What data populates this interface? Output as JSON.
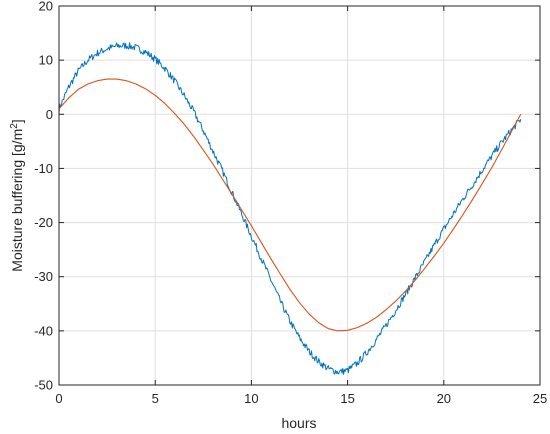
{
  "chart_data": {
    "type": "line",
    "title": "",
    "xlabel": "hours",
    "ylabel_main": "Moisture buffering [g/m",
    "ylabel_sup": "2",
    "ylabel_end": "]",
    "xlim": [
      0,
      25
    ],
    "ylim": [
      -50,
      20
    ],
    "xticks": [
      0,
      5,
      10,
      15,
      20,
      25
    ],
    "yticks": [
      -50,
      -40,
      -30,
      -20,
      -10,
      0,
      10,
      20
    ],
    "xtick_labels": [
      "0",
      "5",
      "10",
      "15",
      "20",
      "25"
    ],
    "ytick_labels": [
      "-50",
      "-40",
      "-30",
      "-20",
      "-10",
      "0",
      "10",
      "20"
    ],
    "grid": true,
    "legend": "none",
    "series": [
      {
        "color": "#0072bd",
        "noisy": true,
        "x": [
          0,
          0.5,
          1,
          1.5,
          2,
          2.5,
          3,
          3.5,
          4,
          4.5,
          5,
          5.5,
          6,
          6.5,
          7,
          7.5,
          8,
          8.5,
          9,
          9.5,
          10,
          10.5,
          11,
          11.5,
          12,
          12.5,
          13,
          13.5,
          14,
          14.5,
          15,
          15.5,
          16,
          16.5,
          17,
          17.5,
          18,
          18.5,
          19,
          19.5,
          20,
          20.5,
          21,
          21.5,
          22,
          22.5,
          23,
          23.5,
          24
        ],
        "y": [
          1,
          5,
          8,
          10,
          11.3,
          12.1,
          12.6,
          12.7,
          12.3,
          11.5,
          10.2,
          8.5,
          6.2,
          3.5,
          0.5,
          -3,
          -6.8,
          -10.5,
          -14.5,
          -18.5,
          -22.5,
          -26.5,
          -30.5,
          -34.5,
          -38.2,
          -41.3,
          -43.8,
          -45.7,
          -47,
          -47.6,
          -47.3,
          -46,
          -44,
          -41.6,
          -39,
          -36.2,
          -33.3,
          -30.3,
          -27.3,
          -24.2,
          -21.2,
          -18.4,
          -15.6,
          -13,
          -10.3,
          -7.7,
          -5.2,
          -3,
          -0.9
        ]
      },
      {
        "color": "#d95319",
        "noisy": false,
        "x": [
          0,
          0.5,
          1,
          1.5,
          2,
          2.5,
          3,
          3.5,
          4,
          4.5,
          5,
          5.5,
          6,
          6.5,
          7,
          7.5,
          8,
          8.5,
          9,
          9.5,
          10,
          10.5,
          11,
          11.5,
          12,
          12.5,
          13,
          13.5,
          14,
          14.5,
          15,
          15.5,
          16,
          16.5,
          17,
          17.5,
          18,
          18.5,
          19,
          19.5,
          20,
          20.5,
          21,
          21.5,
          22,
          22.5,
          23,
          23.5,
          24
        ],
        "y": [
          1,
          3,
          4.6,
          5.6,
          6.2,
          6.5,
          6.5,
          6.2,
          5.6,
          4.7,
          3.5,
          2,
          0.2,
          -1.8,
          -4.1,
          -6.6,
          -9.2,
          -12,
          -14.8,
          -17.7,
          -20.6,
          -23.6,
          -26.6,
          -29.5,
          -32.3,
          -34.8,
          -36.9,
          -38.5,
          -39.6,
          -40,
          -39.9,
          -39.4,
          -38.6,
          -37.5,
          -36.1,
          -34.5,
          -32.7,
          -30.7,
          -28.5,
          -26.2,
          -23.8,
          -21.2,
          -18.5,
          -15.7,
          -12.8,
          -9.8,
          -6.6,
          -3.3,
          0
        ]
      }
    ]
  }
}
